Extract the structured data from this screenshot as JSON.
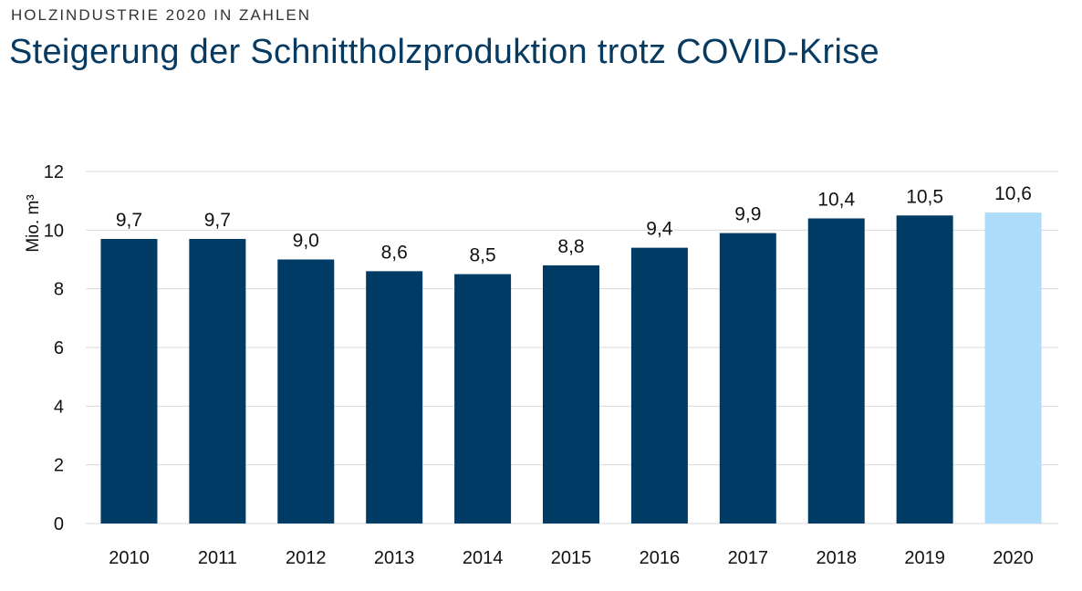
{
  "header": {
    "kicker": "HOLZINDUSTRIE 2020 IN ZAHLEN",
    "title": "Steigerung der Schnittholzproduktion trotz COVID-Krise"
  },
  "chart_data": {
    "type": "bar",
    "categories": [
      "2010",
      "2011",
      "2012",
      "2013",
      "2014",
      "2015",
      "2016",
      "2017",
      "2018",
      "2019",
      "2020"
    ],
    "values": [
      9.7,
      9.7,
      9.0,
      8.6,
      8.5,
      8.8,
      9.4,
      9.9,
      10.4,
      10.5,
      10.6
    ],
    "data_labels": [
      "9,7",
      "9,7",
      "9,0",
      "8,6",
      "8,5",
      "8,8",
      "9,4",
      "9,9",
      "10,4",
      "10,5",
      "10,6"
    ],
    "title": "Steigerung der Schnittholzproduktion trotz COVID-Krise",
    "xlabel": "",
    "ylabel": "Mio. m³",
    "ylim": [
      0,
      12
    ],
    "yticks": [
      0,
      2,
      4,
      6,
      8,
      10,
      12
    ],
    "grid": true,
    "legend": "none",
    "colors": {
      "bar": "#003b65",
      "highlight": "#addcfb",
      "highlight_category": "2020"
    }
  }
}
